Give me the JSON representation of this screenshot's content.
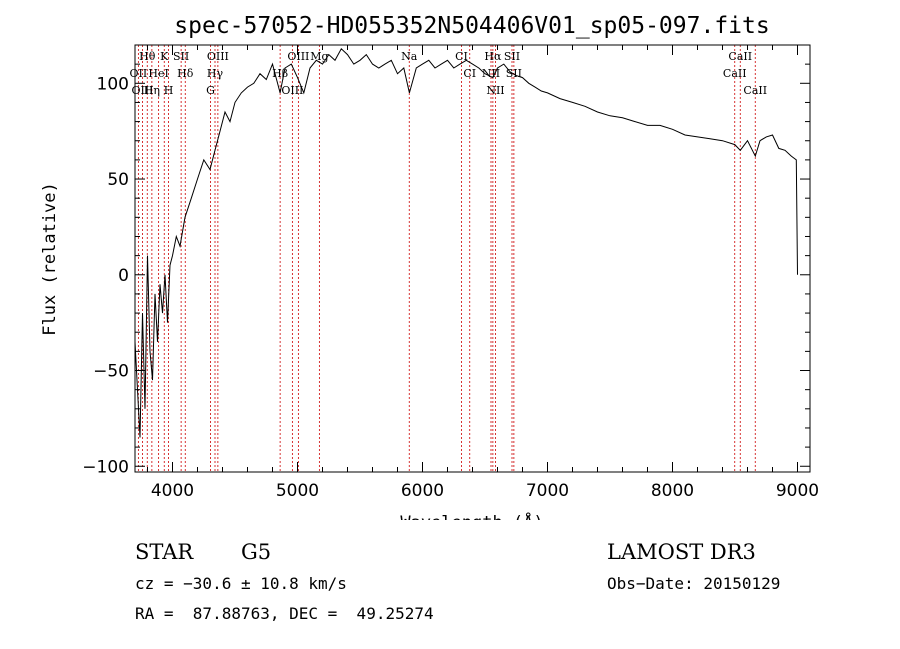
{
  "chart_data": {
    "type": "line",
    "title": "spec-57052-HD055352N504406V01_sp05-097.fits",
    "xlabel": "Wavelength (Å)",
    "ylabel": "Flux (relative)",
    "xlim": [
      3700,
      9100
    ],
    "ylim": [
      -103,
      120
    ],
    "xticks": [
      4000,
      5000,
      6000,
      7000,
      8000,
      9000
    ],
    "yticks": [
      -100,
      -50,
      0,
      50,
      100
    ],
    "series": [
      {
        "name": "flux",
        "x": [
          3700,
          3720,
          3740,
          3760,
          3780,
          3800,
          3820,
          3840,
          3860,
          3880,
          3900,
          3920,
          3940,
          3960,
          3980,
          4000,
          4030,
          4060,
          4100,
          4150,
          4200,
          4250,
          4300,
          4340,
          4380,
          4420,
          4460,
          4500,
          4550,
          4600,
          4650,
          4700,
          4750,
          4800,
          4861,
          4900,
          4950,
          5000,
          5050,
          5100,
          5150,
          5200,
          5250,
          5300,
          5350,
          5400,
          5450,
          5500,
          5550,
          5600,
          5650,
          5700,
          5750,
          5800,
          5850,
          5895,
          5950,
          6000,
          6050,
          6100,
          6150,
          6200,
          6250,
          6300,
          6350,
          6400,
          6450,
          6500,
          6563,
          6600,
          6650,
          6700,
          6750,
          6800,
          6850,
          6900,
          6950,
          7000,
          7100,
          7200,
          7300,
          7400,
          7500,
          7600,
          7700,
          7800,
          7900,
          8000,
          8100,
          8200,
          8300,
          8400,
          8498,
          8542,
          8600,
          8662,
          8700,
          8750,
          8800,
          8850,
          8900,
          8950,
          8990,
          9000
        ],
        "values": [
          -35,
          -60,
          -85,
          -20,
          -70,
          10,
          -40,
          -55,
          -10,
          -35,
          -5,
          -20,
          0,
          -25,
          5,
          10,
          20,
          15,
          30,
          40,
          50,
          60,
          55,
          65,
          75,
          85,
          80,
          90,
          95,
          98,
          100,
          105,
          102,
          110,
          95,
          108,
          110,
          103,
          95,
          108,
          112,
          110,
          115,
          112,
          118,
          115,
          110,
          112,
          115,
          110,
          108,
          110,
          112,
          105,
          108,
          95,
          108,
          110,
          112,
          108,
          110,
          112,
          108,
          110,
          112,
          110,
          108,
          105,
          103,
          108,
          110,
          106,
          104,
          103,
          100,
          98,
          96,
          95,
          92,
          90,
          88,
          85,
          83,
          82,
          80,
          78,
          78,
          76,
          73,
          72,
          71,
          70,
          68,
          65,
          70,
          62,
          70,
          72,
          73,
          66,
          65,
          62,
          60,
          0
        ]
      }
    ],
    "line_markers": [
      {
        "label": "Hθ",
        "x": 3798
      },
      {
        "label": "OII",
        "x": 3727
      },
      {
        "label": "OIII",
        "x": 3760
      },
      {
        "label": "K",
        "x": 3934
      },
      {
        "label": "HeI",
        "x": 3889
      },
      {
        "label": "Hη",
        "x": 3835
      },
      {
        "label": "SII",
        "x": 4069
      },
      {
        "label": "H",
        "x": 3968
      },
      {
        "label": "Hδ",
        "x": 4102
      },
      {
        "label": "OIII",
        "x": 4363
      },
      {
        "label": "Hγ",
        "x": 4340
      },
      {
        "label": "G",
        "x": 4304
      },
      {
        "label": "OIII",
        "x": 5007
      },
      {
        "label": "Hβ",
        "x": 4861
      },
      {
        "label": "OIII",
        "x": 4959
      },
      {
        "label": "Mg",
        "x": 5175
      },
      {
        "label": "Na",
        "x": 5894
      },
      {
        "label": "CI",
        "x": 6312
      },
      {
        "label": "CI",
        "x": 6378
      },
      {
        "label": "Hα",
        "x": 6563
      },
      {
        "label": "SII",
        "x": 6716
      },
      {
        "label": "NII",
        "x": 6548
      },
      {
        "label": "NII",
        "x": 6584
      },
      {
        "label": "SII",
        "x": 6731
      },
      {
        "label": "CaII",
        "x": 8542
      },
      {
        "label": "CaII",
        "x": 8498
      },
      {
        "label": "CaII",
        "x": 8662
      }
    ]
  },
  "info": {
    "class": "STAR",
    "subclass": "G5",
    "cz": "cz = −30.6 ± 10.8 km/s",
    "coords": "RA =  87.88763, DEC =  49.25274",
    "survey": "LAMOST DR3",
    "obs_date": "Obs−Date: 20150129"
  },
  "colors": {
    "marker": "#cc0000",
    "ink": "#000000"
  }
}
